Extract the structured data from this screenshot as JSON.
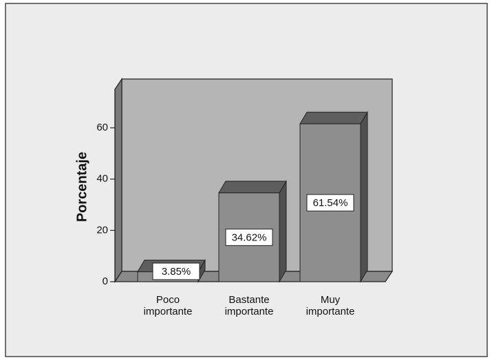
{
  "chart_data": {
    "type": "bar3d",
    "y_label": "Porcentaje",
    "categories": [
      "Poco importante",
      "Bastante importante",
      "Muy importante"
    ],
    "values": [
      3.85,
      34.62,
      61.54
    ],
    "value_labels": [
      "3.85%",
      "34.62%",
      "61.54%"
    ],
    "color": "#8e8e8e",
    "ylim": [
      0,
      75
    ],
    "yticks": [
      0,
      20,
      40,
      60
    ]
  }
}
